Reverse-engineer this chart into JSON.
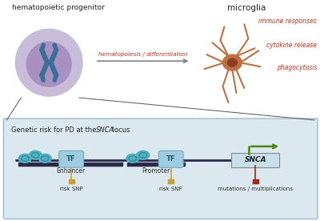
{
  "bg_color": "#ffffff",
  "title_text": "hematopoietic progenitor",
  "microglia_text": "microglia",
  "arrow_label": "hematopoiesis / differentiation",
  "functions": [
    "immune responses",
    "cytokine release",
    "phagocytosis"
  ],
  "box_bg": "#dce8f0",
  "box_border": "#99bbcc",
  "box_title_normal1": "Genetic risk for PD at the ",
  "box_title_italic": "SNCA",
  "box_title_normal2": " locus",
  "cell_outer_color": "#c8bdd8",
  "cell_inner_color": "#a890c0",
  "chromosome_color": "#3a6e9a",
  "tf_color": "#a0cce0",
  "tf_border": "#70aac0",
  "dna_bar_color": "#2a2a4a",
  "nucleosome_color": "#50b0c0",
  "nucleosome_dark": "#308898",
  "snca_box_color": "#c8e0ec",
  "snca_box_border": "#888888",
  "snca_text": "SNCA",
  "arrow_gene_color": "#4a8a10",
  "enhancer_label": "Enhancer",
  "promoter_label": "Promoter",
  "risk_snp_label": "risk SNP",
  "mut_label": "mutations / multiplications",
  "risk_snp_color": "#c8a030",
  "mut_color": "#a02818",
  "red_color": "#c03020",
  "gray_arrow_color": "#808080",
  "neuron_color": "#c07040",
  "neuron_dark": "#8a4020"
}
